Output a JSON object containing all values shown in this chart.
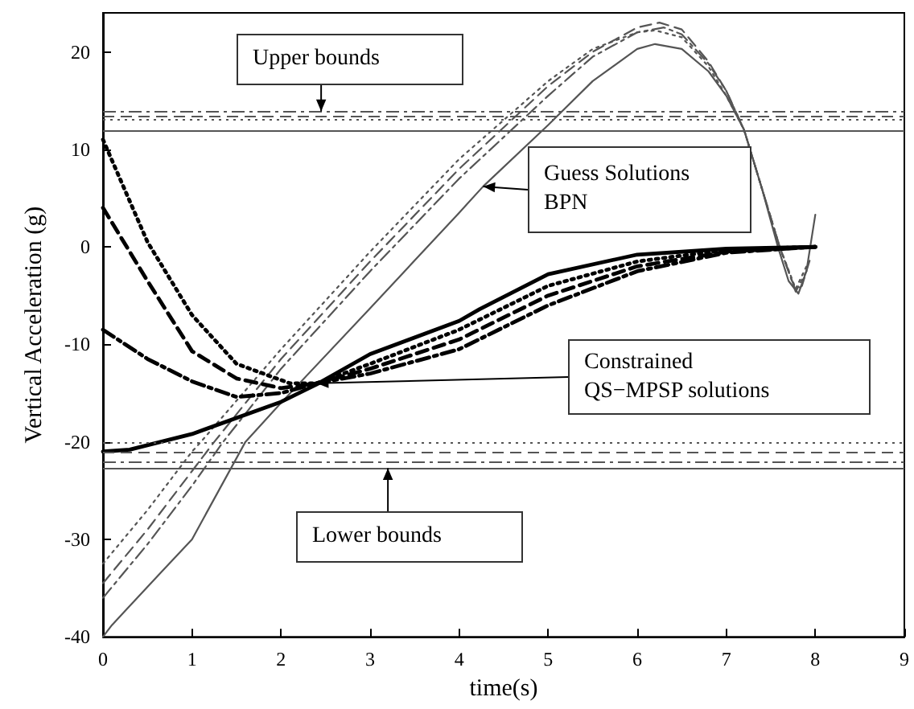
{
  "chart_data": {
    "type": "line",
    "xlabel": "time(s)",
    "ylabel": "Vertical Acceleration (g)",
    "xlim": [
      0,
      9
    ],
    "xticks": [
      0,
      1,
      2,
      3,
      4,
      5,
      6,
      7,
      8,
      9
    ],
    "ylim": [
      -40,
      24
    ],
    "yticks": [
      -40,
      -30,
      -20,
      -10,
      0,
      10,
      20
    ],
    "grid": false,
    "marker": "none",
    "series": [
      {
        "color": "#555555",
        "line_style": "solid",
        "x": [
          0,
          0.1,
          0.65,
          1,
          1.6,
          2,
          3,
          4,
          4.27,
          5,
          5.5,
          6,
          6.2,
          6.5,
          6.8,
          7,
          7.2,
          7.4,
          7.58,
          7.7,
          7.81,
          7.9,
          8
        ],
        "values": [
          -40,
          -38.8,
          -33.4,
          -30,
          -20,
          -16,
          -6.3,
          3.5,
          6.2,
          12.5,
          17,
          20.3,
          20.8,
          20.3,
          18,
          15.5,
          12,
          6,
          0,
          -3.5,
          -4.8,
          -2.5,
          3.3
        ]
      },
      {
        "color": "#555555",
        "line_style": "dashed",
        "x": [
          0,
          0.5,
          1,
          1.25,
          2,
          3,
          4,
          5,
          5.5,
          6,
          6.25,
          6.5,
          6.8,
          7,
          7.2,
          7.4,
          7.6,
          7.78,
          7.85,
          7.95
        ],
        "values": [
          -34.5,
          -29,
          -23,
          -20,
          -11.5,
          -1.5,
          8,
          16.5,
          20,
          22.5,
          23,
          22.3,
          19,
          16,
          12,
          6,
          0,
          -4.5,
          -4,
          -1
        ]
      },
      {
        "color": "#555555",
        "line_style": "dotted",
        "x": [
          0,
          0.5,
          1,
          1.1,
          2,
          3,
          4,
          5,
          5.5,
          6,
          6.2,
          6.5,
          6.8,
          7,
          7.2,
          7.4,
          7.6,
          7.78,
          7.9
        ],
        "values": [
          -32.5,
          -27,
          -21,
          -20,
          -10.5,
          -0.5,
          9,
          17,
          20.3,
          22,
          22.2,
          21.5,
          18.5,
          15.5,
          12,
          6,
          0,
          -4.3,
          -2
        ]
      },
      {
        "color": "#555555",
        "line_style": "dashdot",
        "x": [
          0,
          0.5,
          1,
          1.35,
          2,
          3,
          4,
          5,
          5.5,
          6,
          6.3,
          6.5,
          6.8,
          7,
          7.2,
          7.4,
          7.6,
          7.78,
          7.9
        ],
        "values": [
          -36,
          -30.5,
          -24.5,
          -20,
          -12.5,
          -2.5,
          7,
          15.5,
          19.5,
          22,
          22.5,
          21.8,
          18.8,
          16,
          12,
          6,
          0,
          -4.6,
          -2.5
        ]
      },
      {
        "color": "#000000",
        "line_style": "solid",
        "x": [
          0,
          0.3,
          1,
          2,
          2.4,
          3,
          4,
          4.23,
          5,
          6,
          7,
          8
        ],
        "values": [
          -21,
          -20.8,
          -19.2,
          -15.9,
          -14.1,
          -11,
          -7.6,
          -6.4,
          -2.8,
          -0.8,
          -0.2,
          0
        ]
      },
      {
        "color": "#000000",
        "line_style": "dashed",
        "x": [
          0,
          0.5,
          1,
          1.5,
          2,
          2.4,
          3,
          4,
          5,
          6,
          7,
          8
        ],
        "values": [
          4,
          -3.5,
          -10.7,
          -13.5,
          -14.5,
          -14,
          -12.5,
          -9.5,
          -5,
          -2,
          -0.5,
          0
        ]
      },
      {
        "color": "#000000",
        "line_style": "dotted",
        "x": [
          0,
          0.5,
          1,
          1.5,
          2.1,
          2.4,
          3,
          4,
          5,
          6,
          7,
          8
        ],
        "values": [
          11,
          0.5,
          -7,
          -12,
          -14,
          -14,
          -12,
          -8.5,
          -4,
          -1.5,
          -0.3,
          0
        ]
      },
      {
        "color": "#000000",
        "line_style": "dashdot",
        "x": [
          0,
          0.5,
          1,
          1.5,
          2,
          2.4,
          3,
          4,
          5,
          6,
          7,
          8
        ],
        "values": [
          -8.5,
          -11.5,
          -13.8,
          -15.4,
          -15,
          -14,
          -13,
          -10.5,
          -6,
          -2.5,
          -0.6,
          0
        ]
      }
    ],
    "ref_lines": [
      {
        "axis": "y",
        "value": 12,
        "color": "#555555",
        "line_style": "solid"
      },
      {
        "axis": "y",
        "value": 13,
        "color": "#555555",
        "line_style": "dotted"
      },
      {
        "axis": "y",
        "value": 13.4,
        "color": "#555555",
        "line_style": "dashed"
      },
      {
        "axis": "y",
        "value": 13.9,
        "color": "#555555",
        "line_style": "dashdot"
      },
      {
        "axis": "y",
        "value": -20,
        "color": "#555555",
        "line_style": "dotted"
      },
      {
        "axis": "y",
        "value": -21,
        "color": "#555555",
        "line_style": "dashed"
      },
      {
        "axis": "y",
        "value": -22,
        "color": "#555555",
        "line_style": "dashdot"
      },
      {
        "axis": "y",
        "value": -22.7,
        "color": "#555555",
        "line_style": "solid"
      }
    ],
    "annotations": [
      {
        "text": "Upper bounds",
        "x": 2.45,
        "y": 13.9
      },
      {
        "text": "Guess Solutions\nBPN",
        "x": 4.27,
        "y": 6.2
      },
      {
        "text": "Constrained\nQS−MPSP solutions",
        "x": 2.4,
        "y": -14
      },
      {
        "text": "Lower bounds",
        "x": 3.2,
        "y": -22.7
      }
    ]
  }
}
